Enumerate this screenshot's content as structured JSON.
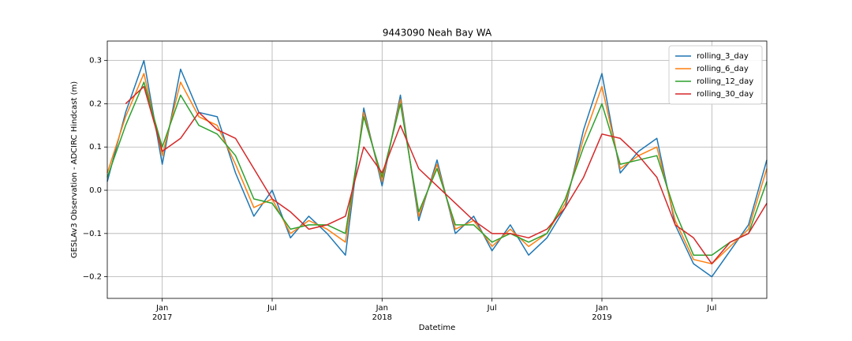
{
  "chart_data": {
    "type": "line",
    "title": "9443090 Neah Bay WA",
    "xlabel": "Datetime",
    "ylabel": "GESLAv3 Observation - ADCIRC Hindcast (m)",
    "x": [
      "2016-10",
      "2016-11",
      "2016-12",
      "2017-01",
      "2017-02",
      "2017-03",
      "2017-04",
      "2017-05",
      "2017-06",
      "2017-07",
      "2017-08",
      "2017-09",
      "2017-10",
      "2017-11",
      "2017-12",
      "2018-01",
      "2018-02",
      "2018-03",
      "2018-04",
      "2018-05",
      "2018-06",
      "2018-07",
      "2018-08",
      "2018-09",
      "2018-10",
      "2018-11",
      "2018-12",
      "2019-01",
      "2019-02",
      "2019-03",
      "2019-04",
      "2019-05",
      "2019-06",
      "2019-07",
      "2019-08",
      "2019-09",
      "2019-10"
    ],
    "series": [
      {
        "name": "rolling_3_day",
        "color": "#1f77b4",
        "values": [
          0.02,
          0.18,
          0.3,
          0.06,
          0.28,
          0.18,
          0.17,
          0.04,
          -0.06,
          0.0,
          -0.11,
          -0.06,
          -0.1,
          -0.15,
          0.19,
          0.01,
          0.22,
          -0.07,
          0.07,
          -0.1,
          -0.06,
          -0.14,
          -0.08,
          -0.15,
          -0.11,
          -0.04,
          0.14,
          0.27,
          0.04,
          0.09,
          0.12,
          -0.08,
          -0.17,
          -0.2,
          -0.14,
          -0.08,
          0.07
        ]
      },
      {
        "name": "rolling_6_day",
        "color": "#ff7f0e",
        "values": [
          0.04,
          0.17,
          0.27,
          0.08,
          0.25,
          0.17,
          0.15,
          0.06,
          -0.04,
          -0.02,
          -0.1,
          -0.07,
          -0.09,
          -0.12,
          0.18,
          0.02,
          0.21,
          -0.06,
          0.06,
          -0.09,
          -0.07,
          -0.13,
          -0.09,
          -0.13,
          -0.1,
          -0.03,
          0.12,
          0.24,
          0.05,
          0.08,
          0.1,
          -0.07,
          -0.16,
          -0.17,
          -0.13,
          -0.09,
          0.05
        ]
      },
      {
        "name": "rolling_12_day",
        "color": "#2ca02c",
        "values": [
          0.03,
          0.15,
          0.25,
          0.1,
          0.22,
          0.15,
          0.13,
          0.08,
          -0.02,
          -0.03,
          -0.09,
          -0.08,
          -0.08,
          -0.1,
          0.17,
          0.03,
          0.2,
          -0.05,
          0.05,
          -0.08,
          -0.08,
          -0.12,
          -0.1,
          -0.12,
          -0.1,
          -0.02,
          0.1,
          0.2,
          0.06,
          0.07,
          0.08,
          -0.05,
          -0.15,
          -0.15,
          -0.12,
          -0.1,
          0.02
        ]
      },
      {
        "name": "rolling_30_day",
        "color": "#d62728",
        "values": [
          null,
          0.2,
          0.24,
          0.09,
          0.12,
          0.18,
          0.14,
          0.12,
          0.05,
          -0.02,
          -0.05,
          -0.09,
          -0.08,
          -0.06,
          0.1,
          0.04,
          0.15,
          0.05,
          0.01,
          -0.03,
          -0.07,
          -0.1,
          -0.1,
          -0.11,
          -0.09,
          -0.04,
          0.03,
          0.13,
          0.12,
          0.08,
          0.03,
          -0.08,
          -0.11,
          -0.17,
          -0.12,
          -0.1,
          -0.03
        ]
      }
    ],
    "xlim": [
      "2016-10",
      "2019-10"
    ],
    "xticks": [
      {
        "value": "2017-01",
        "label": "Jan 2017"
      },
      {
        "value": "2017-07",
        "label": "Jul"
      },
      {
        "value": "2018-01",
        "label": "Jan 2018"
      },
      {
        "value": "2018-07",
        "label": "Jul"
      },
      {
        "value": "2019-01",
        "label": "Jan 2019"
      },
      {
        "value": "2019-07",
        "label": "Jul"
      }
    ],
    "ylim": [
      -0.25,
      0.345
    ],
    "yticks": [
      {
        "value": -0.2,
        "label": "−0.2"
      },
      {
        "value": -0.1,
        "label": "−0.1"
      },
      {
        "value": 0,
        "label": "0.0"
      },
      0.1,
      0.2,
      0.3
    ],
    "grid": true,
    "legend": "upper-right"
  }
}
